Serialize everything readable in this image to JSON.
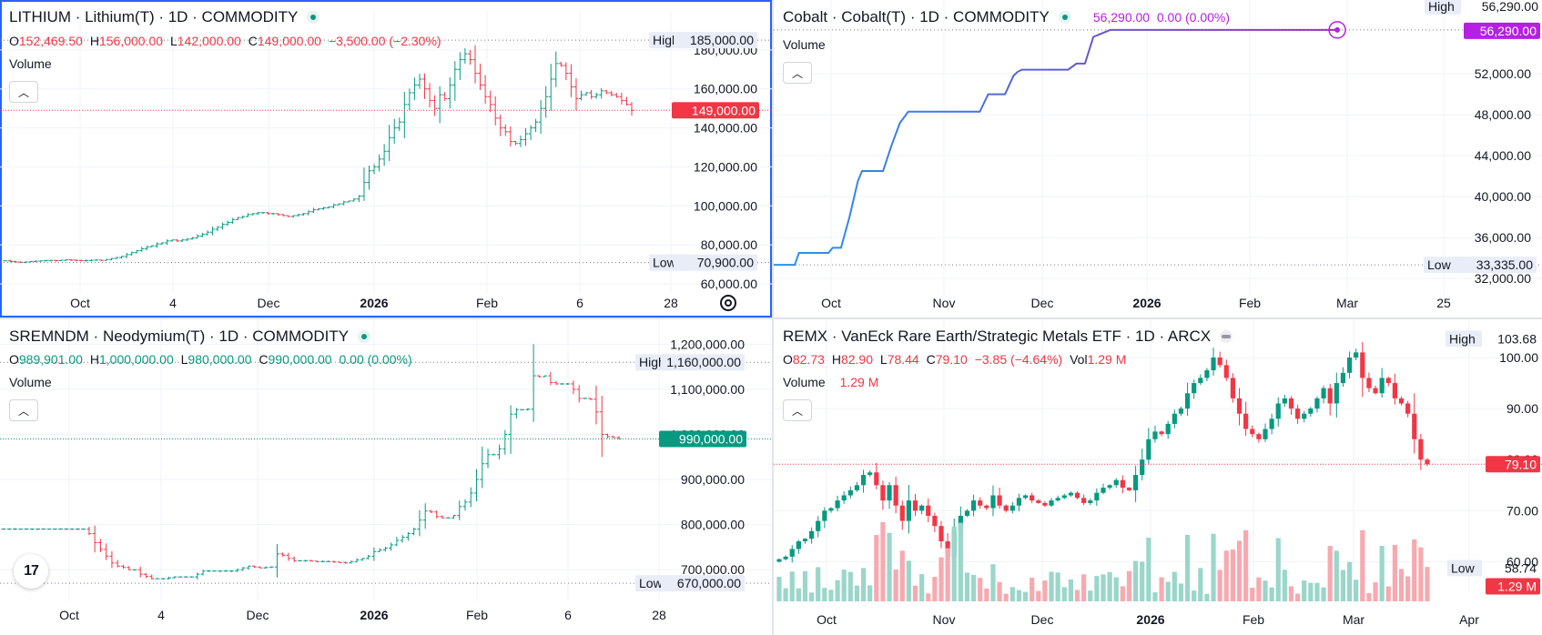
{
  "panes": [
    {
      "id": "lithium",
      "title": "LITHIUM · Lithium(T) · 1D · COMMODITY",
      "ohlc": {
        "o": "O",
        "o_val": "152,469.50",
        "h": "H",
        "h_val": "156,000.00",
        "l": "L",
        "l_val": "142,000.00",
        "c": "C",
        "c_val": "149,000.00",
        "chg": "−3,500.00 (−2.30%)"
      },
      "volume_label": "Volume",
      "high_label": "High",
      "high_value": "185,000.00",
      "low_label": "Low",
      "low_value": "70,900.00",
      "last_value": "149,000.00",
      "colors": {
        "up": "#089981",
        "down": "#f23645",
        "last": "#f23645"
      }
    },
    {
      "id": "cobalt",
      "title": "Cobalt · Cobalt(T) · 1D · COMMODITY",
      "inline_quote": "56,290.00  0.00 (0.00%)",
      "volume_label": "Volume",
      "high_label": "High",
      "high_value": "56,290.00",
      "low_label": "Low",
      "low_value": "33,335.00",
      "last_value": "56,290.00",
      "colors": {
        "line_start": "#2196f3",
        "line_end": "#9c27b0",
        "last": "#b620e0"
      }
    },
    {
      "id": "neodymium",
      "title": "SREMNDM · Neodymium(T) · 1D · COMMODITY",
      "ohlc": {
        "o": "O",
        "o_val": "989,901.00",
        "h": "H",
        "h_val": "1,000,000.00",
        "l": "L",
        "l_val": "980,000.00",
        "c": "C",
        "c_val": "990,000.00",
        "chg": "0.00 (0.00%)"
      },
      "volume_label": "Volume",
      "high_label": "High",
      "high_value": "1,160,000.00",
      "low_label": "Low",
      "low_value": "670,000.00",
      "last_value": "990,000.00",
      "logo_text": "17",
      "colors": {
        "up": "#089981",
        "down": "#f23645",
        "last": "#089981"
      }
    },
    {
      "id": "remx",
      "title": "REMX · VanEck Rare Earth/Strategic Metals ETF · 1D · ARCX",
      "ohlc": {
        "o": "O",
        "o_val": "82.73",
        "h": "H",
        "h_val": "82.90",
        "l": "L",
        "l_val": "78.44",
        "c": "C",
        "c_val": "79.10",
        "chg": "−3.85 (−4.64%)",
        "vol": "Vol",
        "vol_val": "1.29 M"
      },
      "volume_label": "Volume",
      "volume_value": "1.29 M",
      "high_label": "High",
      "high_value": "103.68",
      "low_label": "Low",
      "low_value": "58.74",
      "last_value": "79.10",
      "volume_tag": "1.29 M",
      "colors": {
        "up": "#089981",
        "down": "#f23645",
        "last": "#f23645",
        "vol_up": "#9ad6c9",
        "vol_down": "#f7a9b0"
      }
    }
  ],
  "chart_data": [
    {
      "type": "ohlc",
      "name": "LITHIUM",
      "x_ticks": [
        "Oct",
        "4",
        "Dec",
        "2026",
        "Feb",
        "6",
        "28"
      ],
      "y_ticks": [
        "60,000.00",
        "80,000.00",
        "100,000.00",
        "120,000.00",
        "140,000.00",
        "160,000.00",
        "180,000.00"
      ],
      "ylim": [
        60000,
        186000
      ],
      "close": [
        71800,
        71500,
        71200,
        71000,
        71200,
        71500,
        71600,
        71800,
        72000,
        72000,
        71900,
        72100,
        72300,
        72200,
        72000,
        71900,
        72000,
        72100,
        72200,
        72000,
        72500,
        73000,
        73500,
        74000,
        75000,
        76000,
        77000,
        78000,
        79000,
        79500,
        80500,
        81000,
        82000,
        82500,
        82000,
        82500,
        83000,
        83500,
        84500,
        85500,
        86500,
        88000,
        89000,
        90500,
        91500,
        93000,
        94000,
        94500,
        95500,
        96000,
        96500,
        96500,
        96000,
        96000,
        95500,
        95000,
        94500,
        95000,
        95500,
        96000,
        97000,
        98000,
        98500,
        99000,
        99500,
        100500,
        101000,
        102000,
        102500,
        103500,
        105000,
        112000,
        118000,
        120000,
        124000,
        128000,
        135000,
        140000,
        143000,
        152000,
        158000,
        162000,
        165000,
        160000,
        154000,
        150000,
        157000,
        155000,
        162000,
        170000,
        175000,
        178000,
        175000,
        168000,
        162000,
        156000,
        152000,
        145000,
        140000,
        138000,
        133000,
        132000,
        134000,
        137000,
        140000,
        143000,
        150000,
        156000,
        165000,
        173000,
        172000,
        168000,
        161000,
        155000,
        157000,
        158000,
        156000,
        157000,
        159000,
        158000,
        157000,
        156000,
        154000,
        152000,
        149000
      ]
    },
    {
      "type": "line",
      "name": "Cobalt",
      "x_ticks": [
        "Oct",
        "Nov",
        "Dec",
        "2026",
        "Feb",
        "Mar",
        "25"
      ],
      "y_ticks": [
        "32,000.00",
        "36,000.00",
        "40,000.00",
        "44,000.00",
        "48,000.00",
        "52,000.00"
      ],
      "ylim": [
        31300,
        56900
      ],
      "points_x_days": [
        0,
        5,
        6,
        13,
        14,
        16,
        18,
        20,
        21,
        22,
        26,
        28,
        30,
        32,
        49,
        51,
        55,
        57,
        58,
        59,
        70,
        72,
        74,
        76,
        80,
        102,
        134
      ],
      "points_y": [
        33335,
        33335,
        34500,
        34500,
        35000,
        35000,
        38000,
        41500,
        42500,
        42500,
        42500,
        45000,
        47200,
        48300,
        48300,
        50000,
        50000,
        51800,
        52200,
        52400,
        52400,
        53000,
        53000,
        55600,
        56290,
        56290,
        56290
      ]
    },
    {
      "type": "ohlc",
      "name": "SREMNDM",
      "x_ticks": [
        "Oct",
        "4",
        "Dec",
        "2026",
        "Feb",
        "6",
        "28"
      ],
      "y_ticks": [
        "700,000.00",
        "800,000.00",
        "900,000.00",
        "1,000,000.00",
        "1,100,000.00",
        "1,200,000.00"
      ],
      "ylim": [
        650000,
        1225000
      ],
      "close": [
        790000,
        790000,
        790000,
        790000,
        790000,
        790000,
        790000,
        790000,
        790000,
        790000,
        790000,
        790000,
        790000,
        790000,
        790000,
        780000,
        760000,
        745000,
        730000,
        715000,
        708000,
        705000,
        700000,
        700000,
        690000,
        685000,
        680000,
        680000,
        680000,
        682000,
        684000,
        684000,
        684000,
        684000,
        690000,
        697000,
        697000,
        697000,
        697000,
        697000,
        697000,
        700000,
        704000,
        708000,
        706000,
        704000,
        705000,
        706000,
        735000,
        732000,
        725000,
        720000,
        720000,
        720000,
        719000,
        718000,
        718000,
        718000,
        717000,
        716000,
        715000,
        718000,
        722000,
        725000,
        730000,
        740000,
        744000,
        748000,
        755000,
        765000,
        772000,
        780000,
        790000,
        810000,
        830000,
        828000,
        818000,
        815000,
        815000,
        820000,
        840000,
        850000,
        870000,
        900000,
        935000,
        955000,
        955000,
        968000,
        1000000,
        1045000,
        1055000,
        1055000,
        1056000,
        1130000,
        1128000,
        1130000,
        1115000,
        1112000,
        1112000,
        1112000,
        1100000,
        1080000,
        1080000,
        1078000,
        1050000,
        1000000,
        995000,
        993000,
        990000
      ]
    },
    {
      "type": "candlestick",
      "name": "REMX",
      "x_ticks": [
        "Oct",
        "Nov",
        "Dec",
        "2026",
        "Feb",
        "Mar",
        "Apr"
      ],
      "y_ticks": [
        "60.00",
        "70.00",
        "80.00",
        "90.00",
        "100.00"
      ],
      "ylim": [
        56.7,
        105.7
      ],
      "close": [
        60.5,
        61,
        62.5,
        64,
        64.5,
        66,
        68,
        70,
        70.5,
        72,
        73,
        74,
        75,
        77,
        77.5,
        75,
        72,
        75,
        71,
        68,
        72,
        70,
        71,
        69,
        67,
        64,
        61,
        66,
        69,
        70,
        72,
        71,
        70.5,
        73,
        71,
        70,
        71,
        72.5,
        73,
        72,
        71.5,
        71,
        72,
        72.5,
        73,
        73.5,
        72.5,
        71.5,
        72,
        73.5,
        74.5,
        75,
        76,
        74.5,
        74,
        77,
        80,
        84,
        85.5,
        85,
        87,
        89,
        90,
        93,
        95,
        96,
        97.5,
        100,
        98.5,
        96,
        92,
        89,
        86,
        85,
        84,
        86,
        88,
        91,
        92,
        90,
        88,
        89,
        90,
        92,
        94,
        91,
        95,
        97,
        100,
        101,
        96,
        94,
        93,
        96,
        95,
        92,
        91,
        89,
        84,
        80,
        79.1
      ],
      "volume_up_down": "mixed",
      "volume_last": "1.29 M"
    }
  ]
}
